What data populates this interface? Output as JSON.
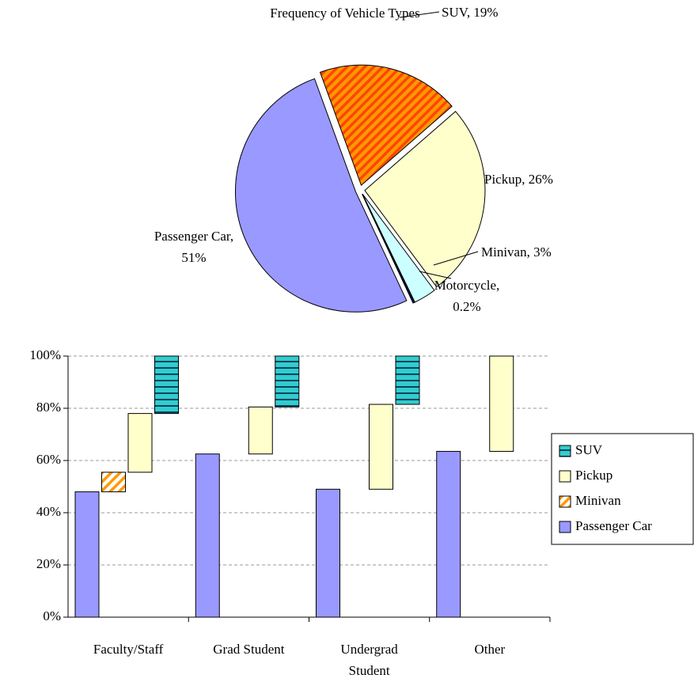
{
  "chart_data": [
    {
      "type": "pie",
      "title": "Frequency of Vehicle Types",
      "categories": [
        "SUV, 19%",
        "Pickup, 26%",
        "Minivan, 3%",
        "Motorcycle, 0.2%",
        "Passenger Car, 51%"
      ],
      "values": [
        19,
        26,
        3,
        0.2,
        51
      ],
      "colors": [
        "#ff9900",
        "#ffffcc",
        "#ccffff",
        "#000080",
        "#9999ff"
      ],
      "hatch": [
        "diagonal",
        null,
        null,
        null,
        null
      ],
      "hatch_colors": [
        "#ff4400",
        null,
        null,
        null,
        null
      ]
    },
    {
      "type": "bar",
      "stacked": true,
      "categories": [
        "Faculty/Staff",
        "Grad Student",
        "Undergrad Student",
        "Other"
      ],
      "series": [
        {
          "name": "Passenger Car",
          "color": "#9999ff",
          "hatch": null,
          "hatch_color": null,
          "values": [
            48,
            62.5,
            49,
            63.5
          ]
        },
        {
          "name": "Minivan",
          "color": "#ffffff",
          "hatch": "diagonal",
          "hatch_color": "#ff9900",
          "values": [
            7.5,
            0,
            0,
            0
          ]
        },
        {
          "name": "Pickup",
          "color": "#ffffcc",
          "hatch": null,
          "hatch_color": null,
          "values": [
            22.5,
            18,
            32.5,
            36.5
          ]
        },
        {
          "name": "SUV",
          "color": "#33cccc",
          "hatch": "horizontal",
          "hatch_color": "#004466",
          "values": [
            22,
            19.5,
            18.5,
            0
          ]
        }
      ],
      "ylim": [
        0,
        100
      ],
      "yticks": [
        {
          "value": 0,
          "label": "0%"
        },
        {
          "value": 20,
          "label": "20%"
        },
        {
          "value": 40,
          "label": "40%"
        },
        {
          "value": 60,
          "label": "60%"
        },
        {
          "value": 80,
          "label": "80%"
        },
        {
          "value": 100,
          "label": "100%"
        }
      ],
      "grid": true,
      "legend": "right"
    }
  ]
}
